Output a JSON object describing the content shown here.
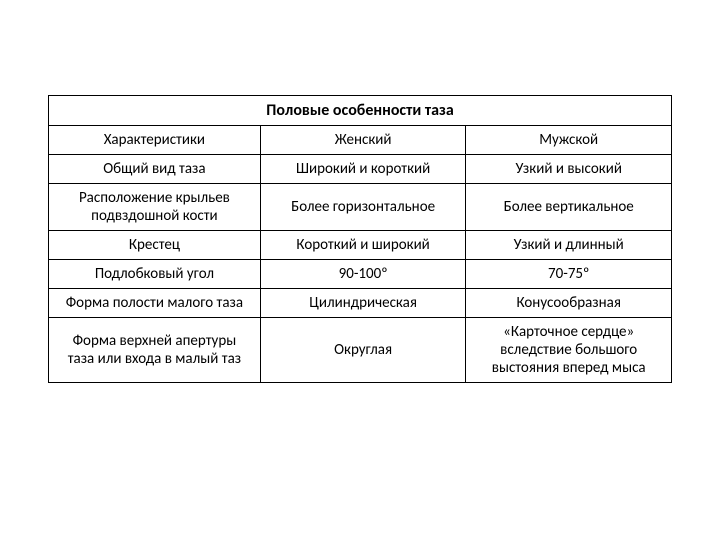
{
  "table": {
    "title": "Половые особенности таза",
    "title_fontsize": 16,
    "title_fontweight": 700,
    "cell_fontsize": 15,
    "cell_fontweight": 400,
    "border_color": "#000000",
    "background_color": "#ffffff",
    "text_color": "#000000",
    "columns": [
      "Характеристики",
      "Женский",
      "Мужской"
    ],
    "column_widths_pct": [
      34,
      33,
      33
    ],
    "rows": [
      [
        "Общий вид таза",
        "Широкий и короткий",
        "Узкий и высокий"
      ],
      [
        "Расположение крыльев подвздошной кости",
        "Более горизонтальное",
        "Более вертикальное"
      ],
      [
        "Крестец",
        "Короткий и широкий",
        "Узкий и длинный"
      ],
      [
        "Подлобковый угол",
        "90-100º",
        "70-75º"
      ],
      [
        "Форма полости малого таза",
        "Цилиндрическая",
        "Конусообразная"
      ],
      [
        "Форма верхней апертуры таза или входа в малый таз",
        "Округлая",
        "«Карточное сердце» вследствие большого выстояния вперед мыса"
      ]
    ]
  }
}
